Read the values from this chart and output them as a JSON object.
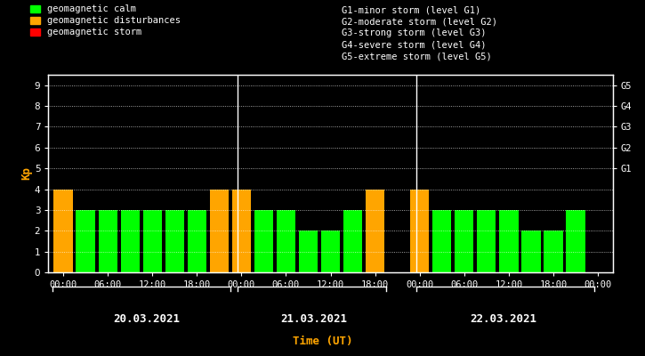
{
  "background_color": "#000000",
  "plot_bg_color": "#000000",
  "text_color": "#ffffff",
  "orange_color": "#ffa500",
  "green_color": "#00ff00",
  "red_color": "#ff0000",
  "bar_values": [
    4,
    3,
    3,
    3,
    3,
    3,
    3,
    4,
    4,
    3,
    3,
    2,
    2,
    3,
    4,
    4,
    3,
    3,
    3,
    3,
    2,
    2,
    3
  ],
  "bar_colors_key": [
    "O",
    "G",
    "G",
    "G",
    "G",
    "G",
    "G",
    "O",
    "O",
    "G",
    "G",
    "G",
    "G",
    "G",
    "O",
    "O",
    "G",
    "G",
    "G",
    "G",
    "G",
    "G",
    "G"
  ],
  "n_bars_day": [
    8,
    7,
    8
  ],
  "day_labels": [
    "20.03.2021",
    "21.03.2021",
    "22.03.2021"
  ],
  "xlabel": "Time (UT)",
  "ylabel": "Kp",
  "ylim": [
    0,
    9.5
  ],
  "yticks": [
    0,
    1,
    2,
    3,
    4,
    5,
    6,
    7,
    8,
    9
  ],
  "right_ytick_vals": [
    5,
    6,
    7,
    8,
    9
  ],
  "right_ytick_labels": [
    "G1",
    "G2",
    "G3",
    "G4",
    "G5"
  ],
  "time_labels_day1": [
    "00:00",
    "06:00",
    "12:00",
    "18:00"
  ],
  "time_labels_day2": [
    "00:00",
    "06:00",
    "12:00",
    "18:00"
  ],
  "time_labels_day3": [
    "00:00",
    "06:00",
    "12:00",
    "18:00",
    "00:00"
  ],
  "legend_items": [
    {
      "label": "geomagnetic calm",
      "color": "#00ff00"
    },
    {
      "label": "geomagnetic disturbances",
      "color": "#ffa500"
    },
    {
      "label": "geomagnetic storm",
      "color": "#ff0000"
    }
  ],
  "right_legend": [
    "G1-minor storm (level G1)",
    "G2-moderate storm (level G2)",
    "G3-strong storm (level G3)",
    "G4-severe storm (level G4)",
    "G5-extreme storm (level G5)"
  ],
  "bar_width": 0.85,
  "fontsize_ticks": 7.5,
  "fontsize_legend": 7.5,
  "fontsize_ylabel": 9,
  "fontsize_day_label": 9,
  "fontsize_xlabel": 9
}
